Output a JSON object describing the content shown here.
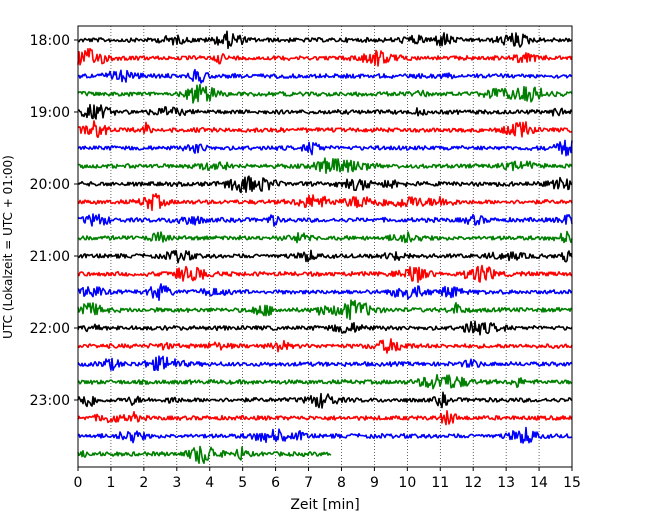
{
  "chart_data": {
    "type": "line",
    "title": "",
    "xlabel": "Zeit  [min]",
    "ylabel": "UTC (Lokalzeit = UTC + 01:00)",
    "xlim": [
      0,
      15
    ],
    "x_ticks": [
      "0",
      "1",
      "2",
      "3",
      "4",
      "5",
      "6",
      "7",
      "8",
      "9",
      "10",
      "11",
      "12",
      "13",
      "14",
      "15"
    ],
    "y_ticks": [
      {
        "label": "18:00",
        "row": 0
      },
      {
        "label": "19:00",
        "row": 4
      },
      {
        "label": "20:00",
        "row": 8
      },
      {
        "label": "21:00",
        "row": 12
      },
      {
        "label": "22:00",
        "row": 16
      },
      {
        "label": "23:00",
        "row": 20
      }
    ],
    "grid": "vertical dotted",
    "series_colors": [
      "#000000",
      "#ff0000",
      "#0000ff",
      "#008000"
    ],
    "rows": [
      {
        "start": "18:00",
        "end_min": 15
      },
      {
        "start": "18:15",
        "end_min": 15
      },
      {
        "start": "18:30",
        "end_min": 15
      },
      {
        "start": "18:45",
        "end_min": 15
      },
      {
        "start": "19:00",
        "end_min": 15
      },
      {
        "start": "19:15",
        "end_min": 15
      },
      {
        "start": "19:30",
        "end_min": 15
      },
      {
        "start": "19:45",
        "end_min": 15
      },
      {
        "start": "20:00",
        "end_min": 15
      },
      {
        "start": "20:15",
        "end_min": 15
      },
      {
        "start": "20:30",
        "end_min": 15
      },
      {
        "start": "20:45",
        "end_min": 15
      },
      {
        "start": "21:00",
        "end_min": 15
      },
      {
        "start": "21:15",
        "end_min": 15
      },
      {
        "start": "21:30",
        "end_min": 15
      },
      {
        "start": "21:45",
        "end_min": 15
      },
      {
        "start": "22:00",
        "end_min": 15
      },
      {
        "start": "22:15",
        "end_min": 15
      },
      {
        "start": "22:30",
        "end_min": 15
      },
      {
        "start": "22:45",
        "end_min": 15
      },
      {
        "start": "23:00",
        "end_min": 15
      },
      {
        "start": "23:15",
        "end_min": 15
      },
      {
        "start": "23:30",
        "end_min": 15
      },
      {
        "start": "23:45",
        "end_min": 7.7
      }
    ]
  }
}
